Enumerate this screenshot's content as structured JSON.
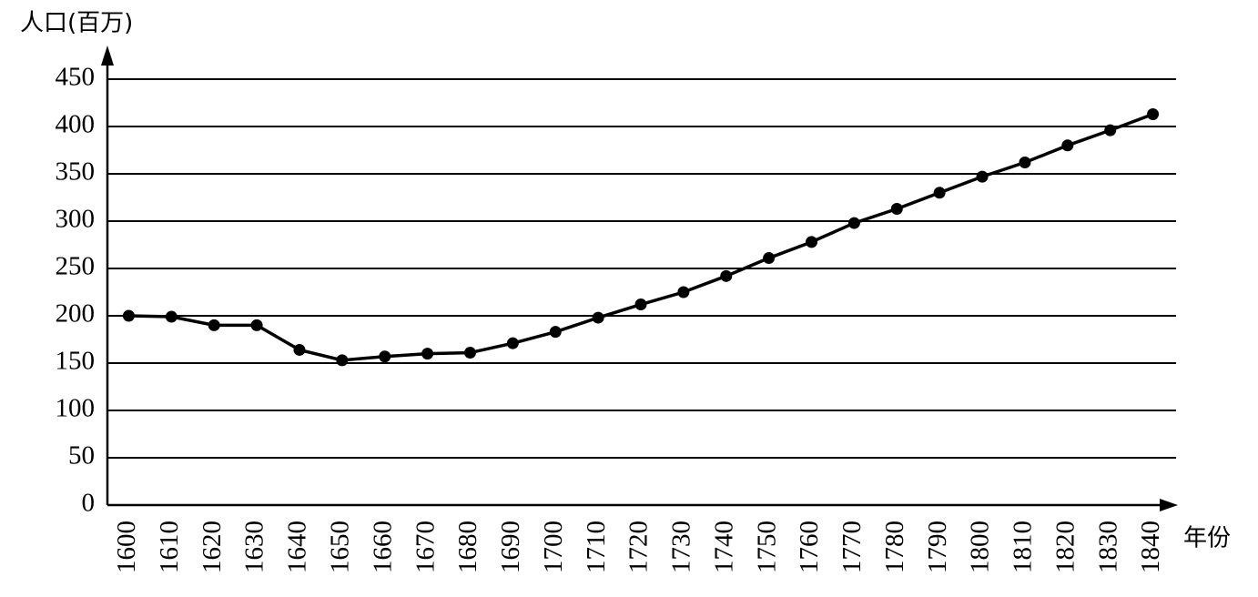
{
  "chart_data": {
    "type": "line",
    "y_label": "人口(百万)",
    "x_label": "年份",
    "x": [
      1600,
      1610,
      1620,
      1630,
      1640,
      1650,
      1660,
      1670,
      1680,
      1690,
      1700,
      1710,
      1720,
      1730,
      1740,
      1750,
      1760,
      1770,
      1780,
      1790,
      1800,
      1810,
      1820,
      1830,
      1840
    ],
    "values": [
      200,
      199,
      190,
      190,
      164,
      153,
      157,
      160,
      161,
      171,
      183,
      198,
      212,
      225,
      242,
      261,
      278,
      298,
      313,
      330,
      347,
      362,
      380,
      396,
      413
    ],
    "color": "#000000",
    "xlim": [
      1595,
      1845
    ],
    "xticks": [
      1600,
      1610,
      1620,
      1630,
      1640,
      1650,
      1660,
      1670,
      1680,
      1690,
      1700,
      1710,
      1720,
      1730,
      1740,
      1750,
      1760,
      1770,
      1780,
      1790,
      1800,
      1810,
      1820,
      1830,
      1840
    ],
    "ylim": [
      0,
      450
    ],
    "yticks": [
      0,
      50,
      100,
      150,
      200,
      250,
      300,
      350,
      400,
      450
    ],
    "grid": true
  }
}
